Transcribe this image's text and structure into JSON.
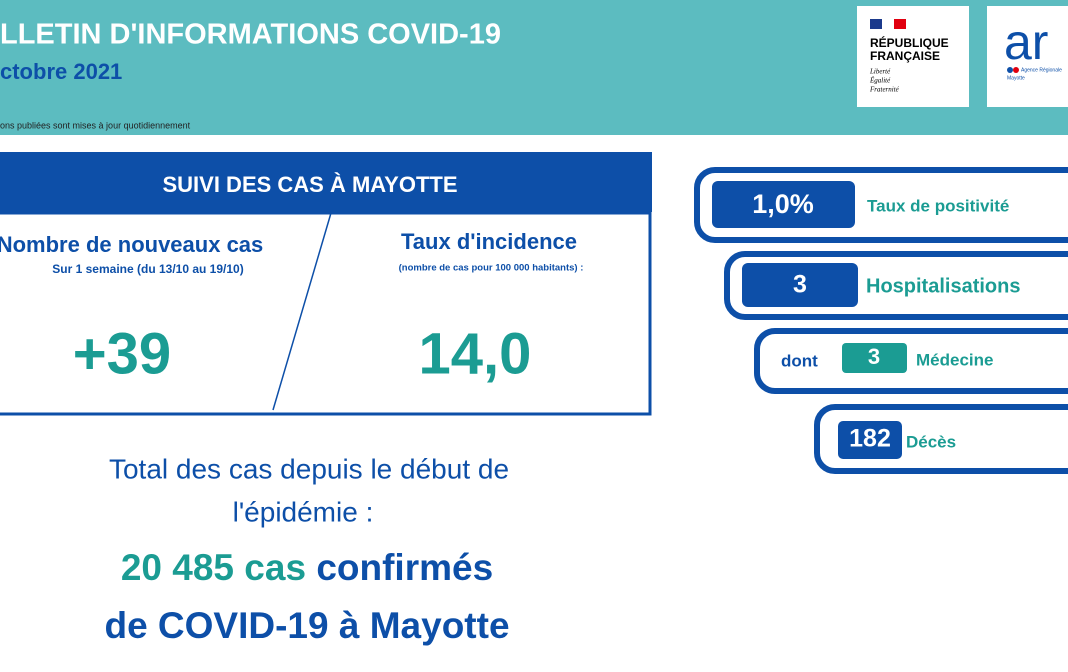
{
  "header": {
    "title": "LLETIN D'INFORMATIONS COVID-19",
    "date": "ctobre 2021",
    "note": "ons publiées sont mises à jour quotidiennement",
    "logo_rf": [
      "RÉPUBLIQUE",
      "FRANÇAISE",
      "Liberté",
      "Égalité",
      "Fraternité"
    ],
    "logo_ars": {
      "mark": "ar",
      "lines": [
        "Agence Régionale",
        "Mayotte"
      ]
    }
  },
  "suivi": {
    "title": "SUIVI DES CAS À MAYOTTE",
    "new_cases": {
      "label": "Nombre de nouveaux cas",
      "sub": "Sur 1 semaine (du 13/10 au 19/10)",
      "value": "+39"
    },
    "incidence": {
      "label": "Taux d'incidence",
      "sub": "(nombre de cas pour 100 000 habitants) :",
      "value": "14,0"
    }
  },
  "total": {
    "line1": "Total des cas depuis le début de",
    "line2": "l'épidémie :",
    "count": "20 485 cas",
    "word": "confirmés",
    "line4": "de COVID-19 à Mayotte"
  },
  "indicators": [
    {
      "value": "1,0%",
      "label": "Taux de positivité"
    },
    {
      "value": "3",
      "label": "Hospitalisations"
    },
    {
      "prefix": "dont",
      "value": "3",
      "label": "Médecine"
    },
    {
      "value": "182",
      "label": "Décès"
    }
  ]
}
